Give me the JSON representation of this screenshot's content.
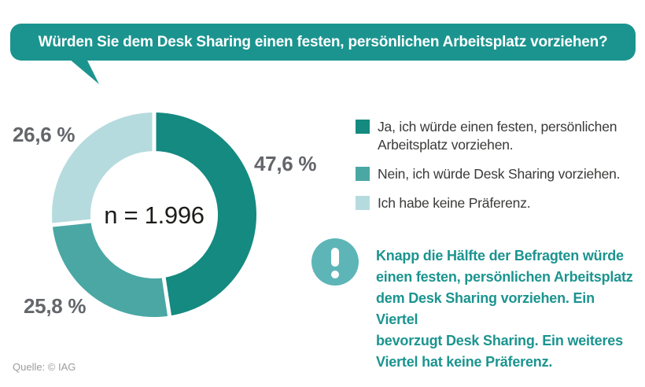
{
  "chart_data": {
    "type": "donut",
    "title": "Würden Sie dem Desk Sharing einen festen, persönlichen Arbeitsplatz vorziehen?",
    "center_label": "n = 1.996",
    "start_angle_deg": 0,
    "direction": "clockwise",
    "legend_position": "right",
    "slices": [
      {
        "name": "ja",
        "legend_label": "Ja, ich würde einen festen, persönlichen\nArbeitsplatz vorziehen.",
        "value_pct": 47.6,
        "value_label": "47,6 %",
        "color": "#148a80"
      },
      {
        "name": "nein",
        "legend_label": "Nein, ich würde Desk Sharing vorziehen.",
        "value_pct": 25.8,
        "value_label": "25,8 %",
        "color": "#4aa7a4"
      },
      {
        "name": "keine_praeferenz",
        "legend_label": "Ich habe keine Präferenz.",
        "value_pct": 26.6,
        "value_label": "26,6 %",
        "color": "#b6dbde"
      }
    ]
  },
  "callout": {
    "icon": "exclamation-icon",
    "text": "Knapp die Hälfte der Befragten würde\neinen festen, persönlichen Arbeitsplatz\ndem Desk Sharing vorziehen. Ein Viertel\nbevorzugt Desk Sharing. Ein weiteres\nViertel hat keine Präferenz."
  },
  "source": {
    "text": "Quelle: © IAG"
  },
  "colors": {
    "banner": "#1b948f",
    "callout_icon_bg": "#5eb5b8",
    "callout_text": "#1b948f",
    "pct_label": "#63666a",
    "legend_text": "#3a3a39",
    "source_text": "#9c9c9b"
  }
}
